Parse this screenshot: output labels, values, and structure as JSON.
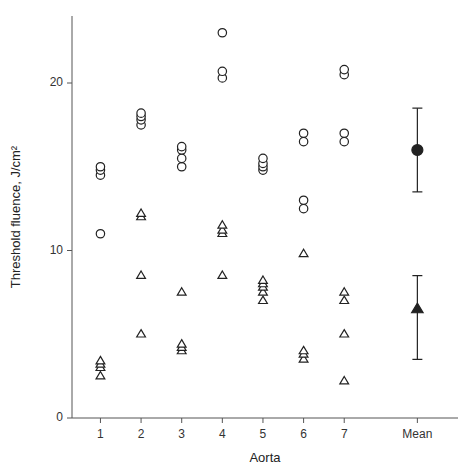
{
  "chart_data": {
    "type": "scatter",
    "xlabel": "Aorta",
    "ylabel": "Threshold fluence, J/cm²",
    "xlim": [
      0.3,
      9.8
    ],
    "ylim": [
      0,
      24
    ],
    "yticks": [
      0,
      10,
      20
    ],
    "xticks": [
      1,
      2,
      3,
      4,
      5,
      6,
      7,
      {
        "value": 8.8,
        "label": "Mean"
      }
    ],
    "series": [
      {
        "marker": "circle",
        "x": [
          1,
          1,
          1,
          1,
          2,
          2,
          2,
          2,
          3,
          3,
          3,
          3,
          4,
          4,
          4,
          5,
          5,
          5,
          5,
          6,
          6,
          6,
          6,
          7,
          7,
          7,
          7
        ],
        "values": [
          11,
          14.5,
          14.8,
          15.0,
          17.5,
          17.8,
          18.0,
          18.2,
          15.0,
          15.5,
          16.0,
          16.2,
          20.3,
          20.7,
          23.0,
          14.8,
          15.0,
          15.2,
          15.5,
          12.5,
          13.0,
          16.5,
          17.0,
          16.5,
          17.0,
          20.5,
          20.8
        ]
      },
      {
        "marker": "triangle",
        "x": [
          1,
          1,
          1,
          1,
          2,
          2,
          2,
          2,
          3,
          3,
          3,
          3,
          4,
          4,
          4,
          4,
          5,
          5,
          5,
          5,
          5,
          6,
          6,
          6,
          6,
          7,
          7,
          7,
          7
        ],
        "values": [
          2.5,
          3.0,
          3.2,
          3.4,
          5.0,
          8.5,
          12.0,
          12.2,
          4.0,
          4.2,
          4.4,
          7.5,
          8.5,
          11.0,
          11.2,
          11.5,
          7.0,
          7.5,
          7.8,
          8.0,
          8.2,
          3.5,
          3.8,
          4.0,
          9.8,
          2.2,
          5.0,
          7.0,
          7.5
        ]
      },
      {
        "type": "errorbar",
        "marker": "circle",
        "x": [
          8.8
        ],
        "values": [
          16.0
        ],
        "error_up": [
          2.5
        ],
        "error_down": [
          2.5
        ]
      },
      {
        "type": "errorbar",
        "marker": "triangle",
        "x": [
          8.8
        ],
        "values": [
          6.5
        ],
        "error_up": [
          2.0
        ],
        "error_down": [
          3.0
        ]
      }
    ]
  }
}
